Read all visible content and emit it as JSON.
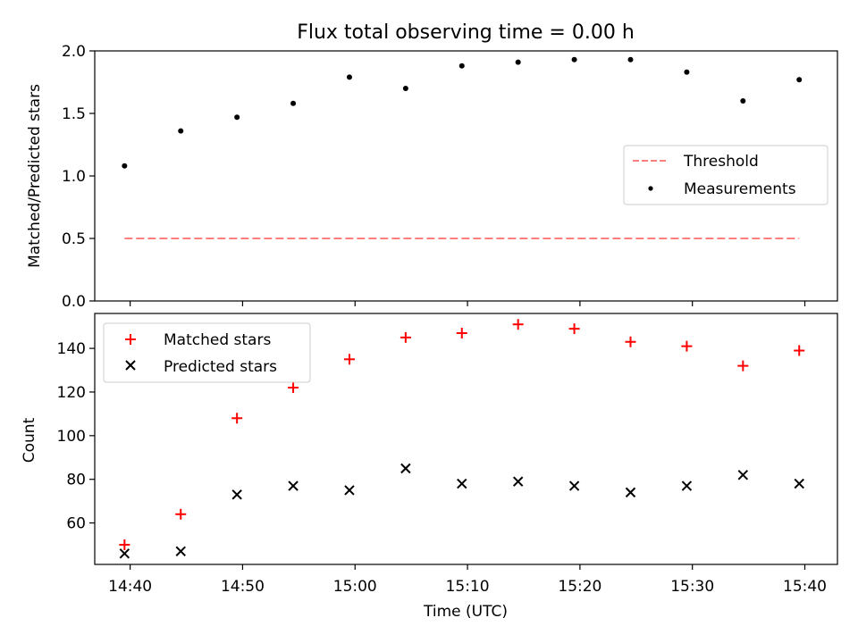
{
  "chart_data": [
    {
      "type": "scatter",
      "title": "Flux total observing time = 0.00 h",
      "xlabel": "",
      "ylabel": "Matched/Predicted stars",
      "ylim": [
        0,
        2.0
      ],
      "yticks": [
        "0.0",
        "0.5",
        "1.0",
        "1.5",
        "2.0"
      ],
      "x": [
        "14:39:30",
        "14:44:30",
        "14:49:30",
        "14:54:30",
        "14:59:30",
        "15:04:30",
        "15:09:30",
        "15:14:30",
        "15:19:30",
        "15:24:30",
        "15:29:30",
        "15:34:30",
        "15:39:30"
      ],
      "series": [
        {
          "name": "Threshold",
          "style": "dashed-line",
          "color": "#ff7f7f",
          "values": [
            0.5,
            0.5,
            0.5,
            0.5,
            0.5,
            0.5,
            0.5,
            0.5,
            0.5,
            0.5,
            0.5,
            0.5,
            0.5
          ]
        },
        {
          "name": "Measurements",
          "style": "dot",
          "color": "#000000",
          "values": [
            1.08,
            1.36,
            1.47,
            1.58,
            1.79,
            1.7,
            1.88,
            1.91,
            1.93,
            1.93,
            1.83,
            1.6,
            1.77
          ]
        }
      ],
      "legend": {
        "position": "center-right",
        "entries": [
          "Threshold",
          "Measurements"
        ]
      },
      "grid": false
    },
    {
      "type": "scatter",
      "title": "",
      "xlabel": "Time (UTC)",
      "ylabel": "Count",
      "ylim": [
        41,
        156
      ],
      "yticks": [
        "60",
        "80",
        "100",
        "120",
        "140"
      ],
      "xticks": [
        "14:40",
        "14:50",
        "15:00",
        "15:10",
        "15:20",
        "15:30",
        "15:40"
      ],
      "x": [
        "14:39:30",
        "14:44:30",
        "14:49:30",
        "14:54:30",
        "14:59:30",
        "15:04:30",
        "15:09:30",
        "15:14:30",
        "15:19:30",
        "15:24:30",
        "15:29:30",
        "15:34:30",
        "15:39:30"
      ],
      "series": [
        {
          "name": "Matched stars",
          "marker": "plus",
          "color": "#ff0000",
          "values": [
            50,
            64,
            108,
            122,
            135,
            145,
            147,
            151,
            149,
            143,
            141,
            132,
            139
          ]
        },
        {
          "name": "Predicted stars",
          "marker": "x",
          "color": "#000000",
          "values": [
            46,
            47,
            73,
            77,
            75,
            85,
            78,
            79,
            77,
            74,
            77,
            82,
            78
          ]
        }
      ],
      "legend": {
        "position": "upper-left",
        "entries": [
          "Matched stars",
          "Predicted stars"
        ]
      },
      "grid": false
    }
  ]
}
